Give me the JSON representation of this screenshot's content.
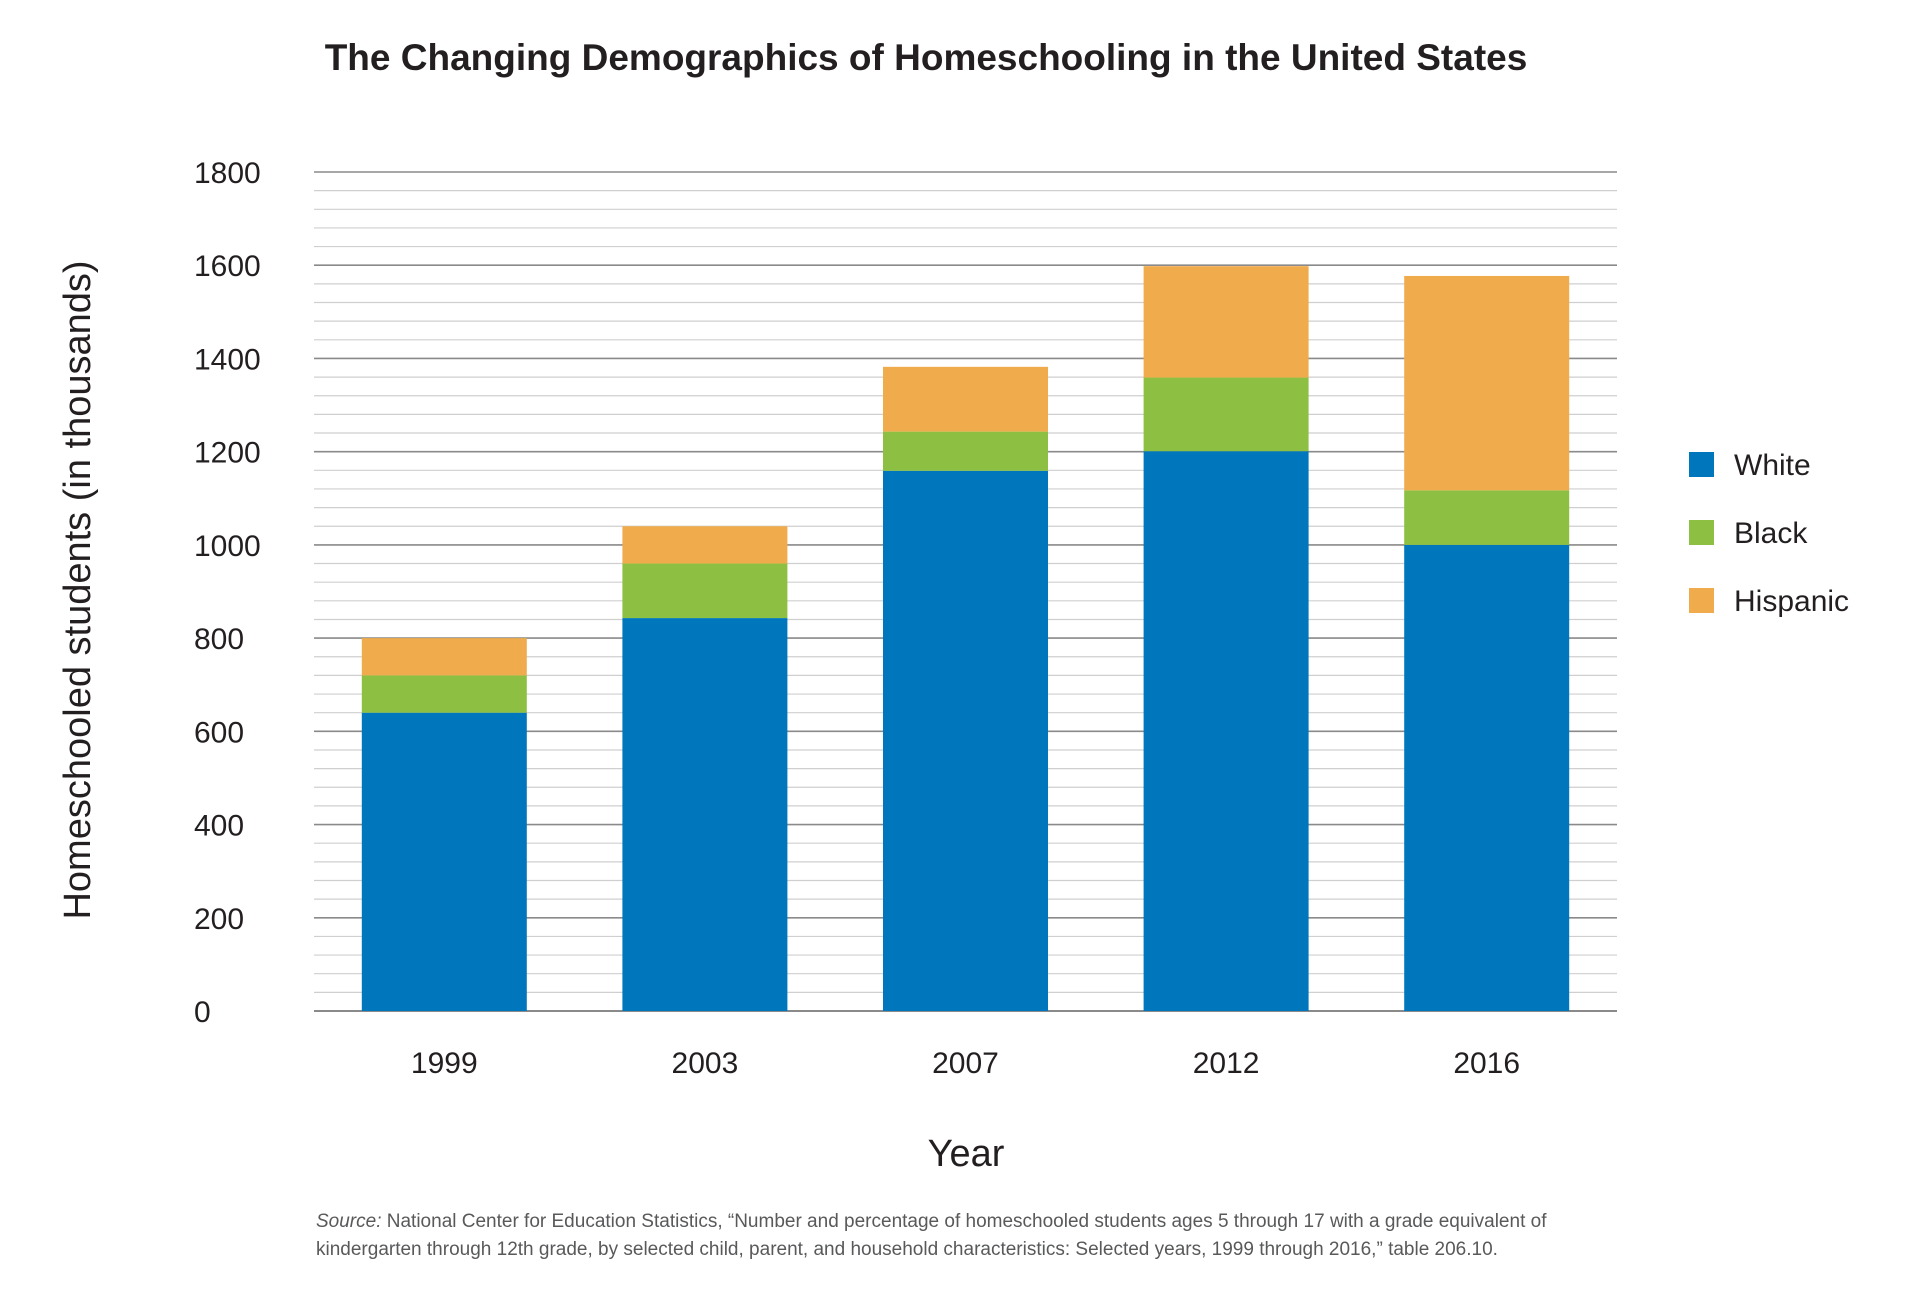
{
  "chart_data": {
    "type": "bar",
    "stacked": true,
    "title": "The Changing Demographics of Homeschooling in the United States",
    "xlabel": "Year",
    "ylabel": "Homeschooled students (in thousands)",
    "categories": [
      "1999",
      "2003",
      "2007",
      "2012",
      "2016"
    ],
    "series": [
      {
        "name": "White",
        "color": "#0077bc",
        "values": [
          640,
          843,
          1159,
          1201,
          1000
        ]
      },
      {
        "name": "Black",
        "color": "#8dc042",
        "values": [
          80,
          117,
          84,
          158,
          117
        ]
      },
      {
        "name": "Hispanic",
        "color": "#f0ac4c",
        "values": [
          80,
          80,
          139,
          239,
          460
        ]
      }
    ],
    "ylim": [
      0,
      1800
    ],
    "yticks": [
      "0",
      "200",
      "400",
      "600",
      "800",
      "1000",
      "1200",
      "1400",
      "1600",
      "1800"
    ],
    "grid": true,
    "legend_position": "right"
  },
  "source": {
    "label": "Source:",
    "text": "National Center for Education Statistics, “Number and percentage of homeschooled students ages 5 through 17 with a grade equivalent of kindergarten through 12th grade, by selected child, parent, and household characteristics: Selected years, 1999 through 2016,” table 206.10."
  }
}
